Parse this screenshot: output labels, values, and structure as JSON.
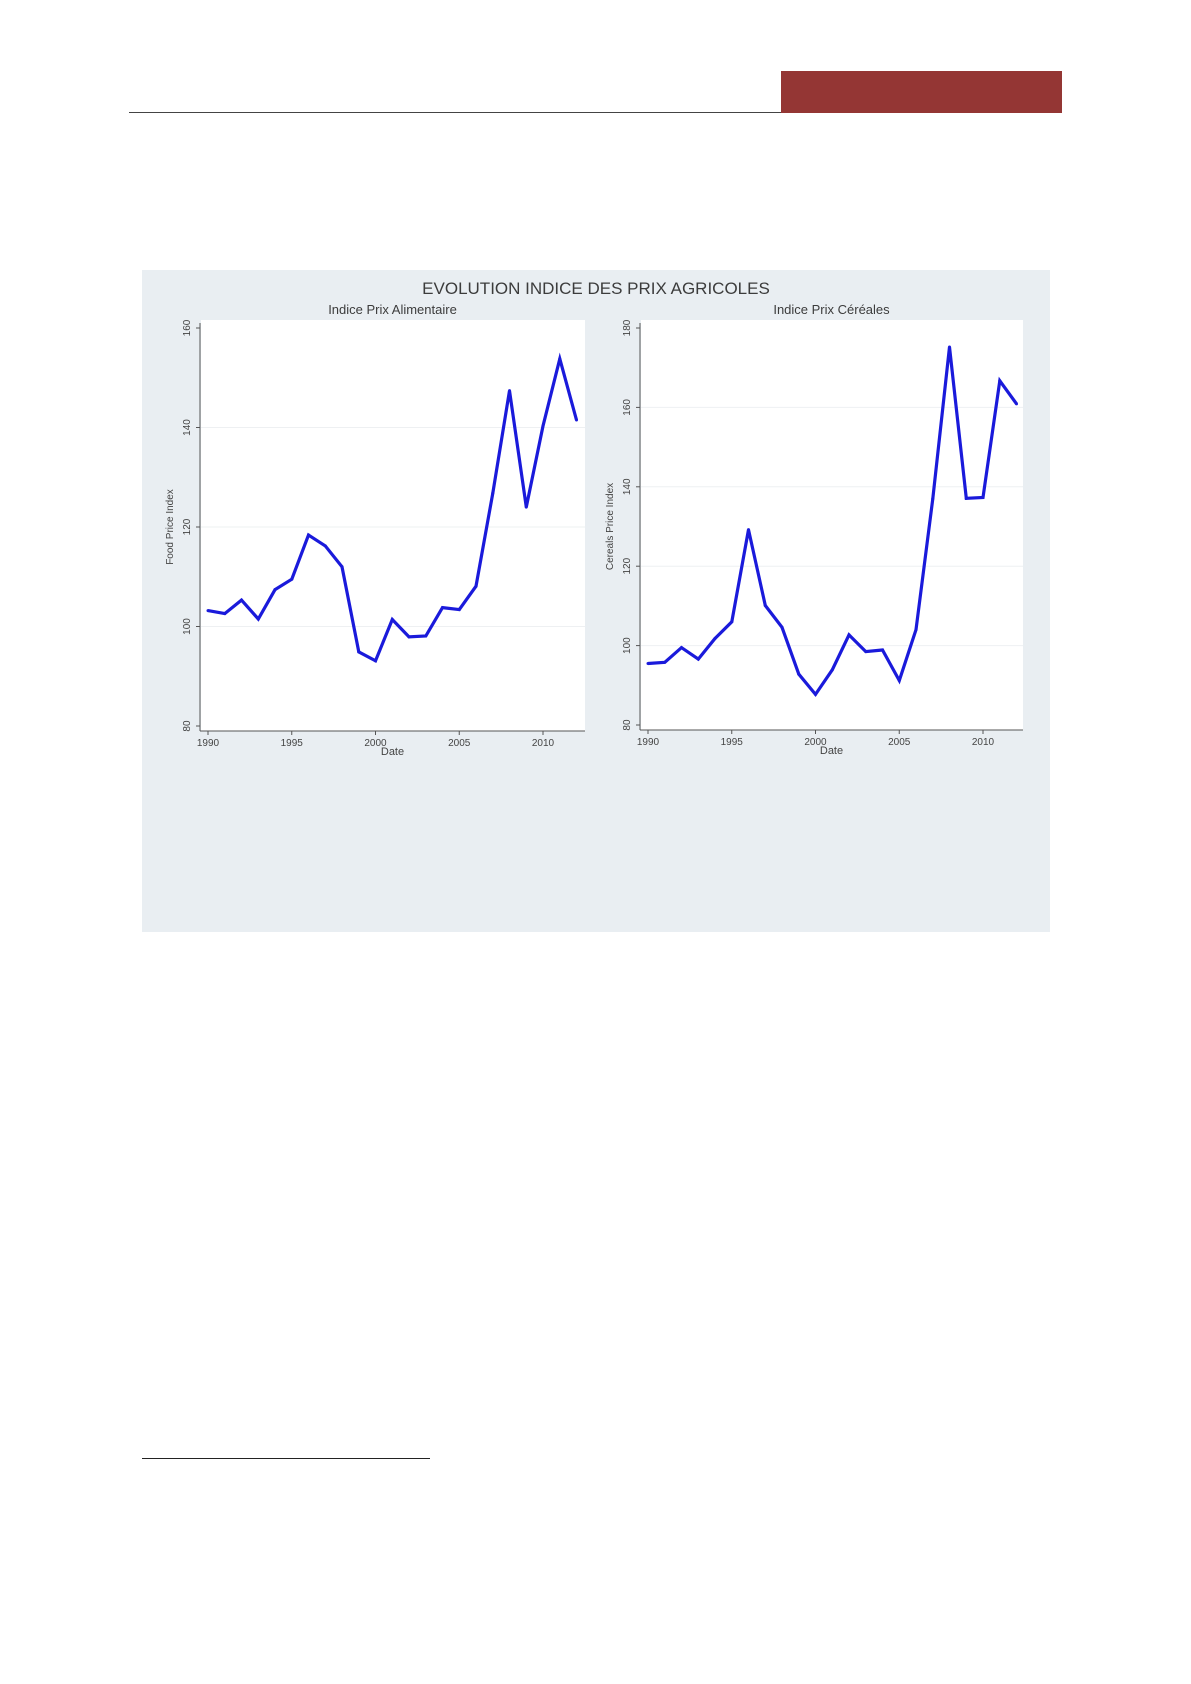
{
  "colors": {
    "accent_bar": "#943634",
    "line": "#1a1adb",
    "panel_bg": "#e9eef2"
  },
  "chart_data": [
    {
      "type": "line",
      "figure_title": "EVOLUTION INDICE DES PRIX AGRICOLES",
      "title": "Indice Prix Alimentaire",
      "xlabel": "Date",
      "ylabel": "Food Price Index",
      "xlim": [
        1990,
        2012
      ],
      "ylim": [
        80,
        160
      ],
      "xticks": [
        1990,
        1995,
        2000,
        2005,
        2010
      ],
      "yticks": [
        80,
        100,
        120,
        140,
        160
      ],
      "grid": true,
      "x": [
        1990,
        1991,
        1992,
        1993,
        1994,
        1995,
        1996,
        1997,
        1998,
        1999,
        2000,
        2001,
        2002,
        2003,
        2004,
        2005,
        2006,
        2007,
        2008,
        2009,
        2010,
        2011,
        2012
      ],
      "y": [
        103.2,
        102.6,
        105.3,
        101.5,
        107.4,
        109.5,
        118.4,
        116.2,
        112.0,
        94.9,
        93.1,
        101.4,
        97.9,
        98.1,
        103.8,
        103.4,
        108.1,
        126.8,
        147.4,
        124.0,
        140.3,
        153.8,
        141.5
      ]
    },
    {
      "type": "line",
      "title": "Indice Prix Céréales",
      "xlabel": "Date",
      "ylabel": "Cereals Price Index",
      "xlim": [
        1990,
        2012
      ],
      "ylim": [
        80,
        180
      ],
      "xticks": [
        1990,
        1995,
        2000,
        2005,
        2010
      ],
      "yticks": [
        80,
        100,
        120,
        140,
        160,
        180
      ],
      "grid": true,
      "x": [
        1990,
        1991,
        1992,
        1993,
        1994,
        1995,
        1996,
        1997,
        1998,
        1999,
        2000,
        2001,
        2002,
        2003,
        2004,
        2005,
        2006,
        2007,
        2008,
        2009,
        2010,
        2011,
        2012
      ],
      "y": [
        95.5,
        95.8,
        99.5,
        96.6,
        101.8,
        106.0,
        129.2,
        110.1,
        104.6,
        92.8,
        87.7,
        93.9,
        102.7,
        98.5,
        98.9,
        91.2,
        104.0,
        137.0,
        175.2,
        137.1,
        137.3,
        166.7,
        160.9
      ]
    }
  ]
}
